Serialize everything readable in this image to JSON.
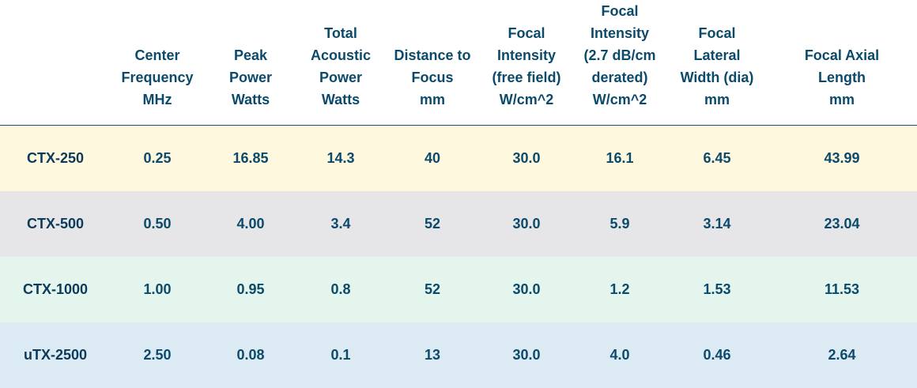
{
  "table": {
    "headers": [
      "",
      "Center\nFrequency\nMHz",
      "Peak\nPower\nWatts",
      "Total\nAcoustic\nPower\nWatts",
      "Distance to\nFocus\nmm",
      "Focal\nIntensity\n(free field)\nW/cm^2",
      "Focal\nIntensity\n(2.7 dB/cm\nderated)\nW/cm^2",
      "Focal\nLateral\nWidth (dia)\nmm",
      "Focal Axial\nLength\nmm"
    ],
    "rows": [
      {
        "bg": "#fdf8de",
        "cells": [
          "CTX-250",
          "0.25",
          "16.85",
          "14.3",
          "40",
          "30.0",
          "16.1",
          "6.45",
          "43.99"
        ]
      },
      {
        "bg": "#e6e6e9",
        "cells": [
          "CTX-500",
          "0.50",
          "4.00",
          "3.4",
          "52",
          "30.0",
          "5.9",
          "3.14",
          "23.04"
        ]
      },
      {
        "bg": "#e3f5ec",
        "cells": [
          "CTX-1000",
          "1.00",
          "0.95",
          "0.8",
          "52",
          "30.0",
          "1.2",
          "1.53",
          "11.53"
        ]
      },
      {
        "bg": "#dcebf3",
        "cells": [
          "uTX-2500",
          "2.50",
          "0.08",
          "0.1",
          "13",
          "30.0",
          "4.0",
          "0.46",
          "2.64"
        ]
      }
    ]
  }
}
